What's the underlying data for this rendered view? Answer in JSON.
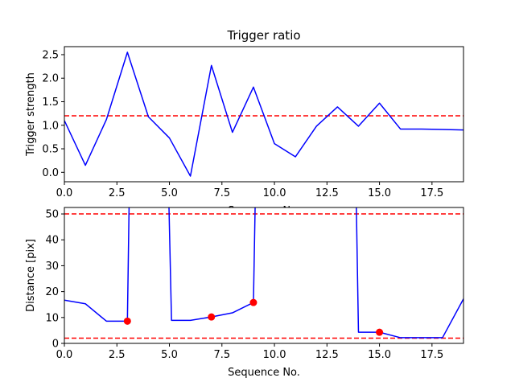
{
  "chart_data": [
    {
      "type": "line",
      "title": "Trigger ratio",
      "xlabel": "Sequence No.",
      "ylabel": "Trigger strength",
      "xlim": [
        0,
        19
      ],
      "ylim": [
        -0.2,
        2.67
      ],
      "xticks": [
        0,
        2.5,
        5,
        7.5,
        10,
        12.5,
        15,
        17.5
      ],
      "xtick_labels": [
        "0.0",
        "2.5",
        "5.0",
        "7.5",
        "10.0",
        "12.5",
        "15.0",
        "17.5"
      ],
      "yticks": [
        0,
        0.5,
        1,
        1.5,
        2,
        2.5
      ],
      "ytick_labels": [
        "0.0",
        "0.5",
        "1.0",
        "1.5",
        "2.0",
        "2.5"
      ],
      "series": [
        {
          "color": "#0000ff",
          "x": [
            0,
            1,
            2,
            3,
            4,
            5,
            6,
            7,
            8,
            9,
            10,
            11,
            12,
            13,
            14,
            15,
            16,
            17,
            18,
            19
          ],
          "y": [
            1.1,
            0.15,
            1.12,
            2.55,
            1.18,
            0.73,
            -0.08,
            2.27,
            0.85,
            1.81,
            0.61,
            0.33,
            0.98,
            1.39,
            0.98,
            1.47,
            0.92,
            0.92,
            0.91,
            0.9
          ]
        }
      ],
      "hlines": [
        {
          "y": 1.2,
          "color": "#ff0000",
          "style": "dashed"
        }
      ],
      "grid": false
    },
    {
      "type": "line",
      "xlabel": "Sequence No.",
      "ylabel": "Distance [pix]",
      "xlim": [
        0,
        19
      ],
      "ylim": [
        0,
        52.5
      ],
      "xticks": [
        0,
        2.5,
        5,
        7.5,
        10,
        12.5,
        15,
        17.5
      ],
      "xtick_labels": [
        "0.0",
        "2.5",
        "5.0",
        "7.5",
        "10.0",
        "12.5",
        "15.0",
        "17.5"
      ],
      "yticks": [
        0,
        10,
        20,
        30,
        40,
        50
      ],
      "ytick_labels": [
        "0",
        "10",
        "20",
        "30",
        "40",
        "50"
      ],
      "series": [
        {
          "color": "#0000ff",
          "segments": [
            {
              "x": [
                0,
                1,
                2,
                3,
                3.08
              ],
              "y": [
                16.7,
                15.3,
                8.6,
                8.6,
                52.5
              ]
            },
            {
              "x": [
                4.98,
                5.1,
                6,
                7,
                8,
                9,
                9.08
              ],
              "y": [
                52.5,
                8.9,
                8.9,
                10.2,
                11.8,
                15.8,
                52.5
              ]
            },
            {
              "x": [
                13.9,
                14,
                15,
                16,
                17,
                18,
                19
              ],
              "y": [
                52.5,
                4.3,
                4.3,
                2.2,
                2.2,
                2.2,
                17.2
              ]
            }
          ]
        },
        {
          "type": "scatter",
          "color": "#ff0000",
          "x": [
            3,
            7,
            9,
            15
          ],
          "y": [
            8.6,
            10.2,
            15.8,
            4.3
          ]
        }
      ],
      "hlines": [
        {
          "y": 50,
          "color": "#ff0000",
          "style": "dashed"
        },
        {
          "y": 2,
          "color": "#ff0000",
          "style": "dashed"
        }
      ],
      "grid": false
    }
  ]
}
